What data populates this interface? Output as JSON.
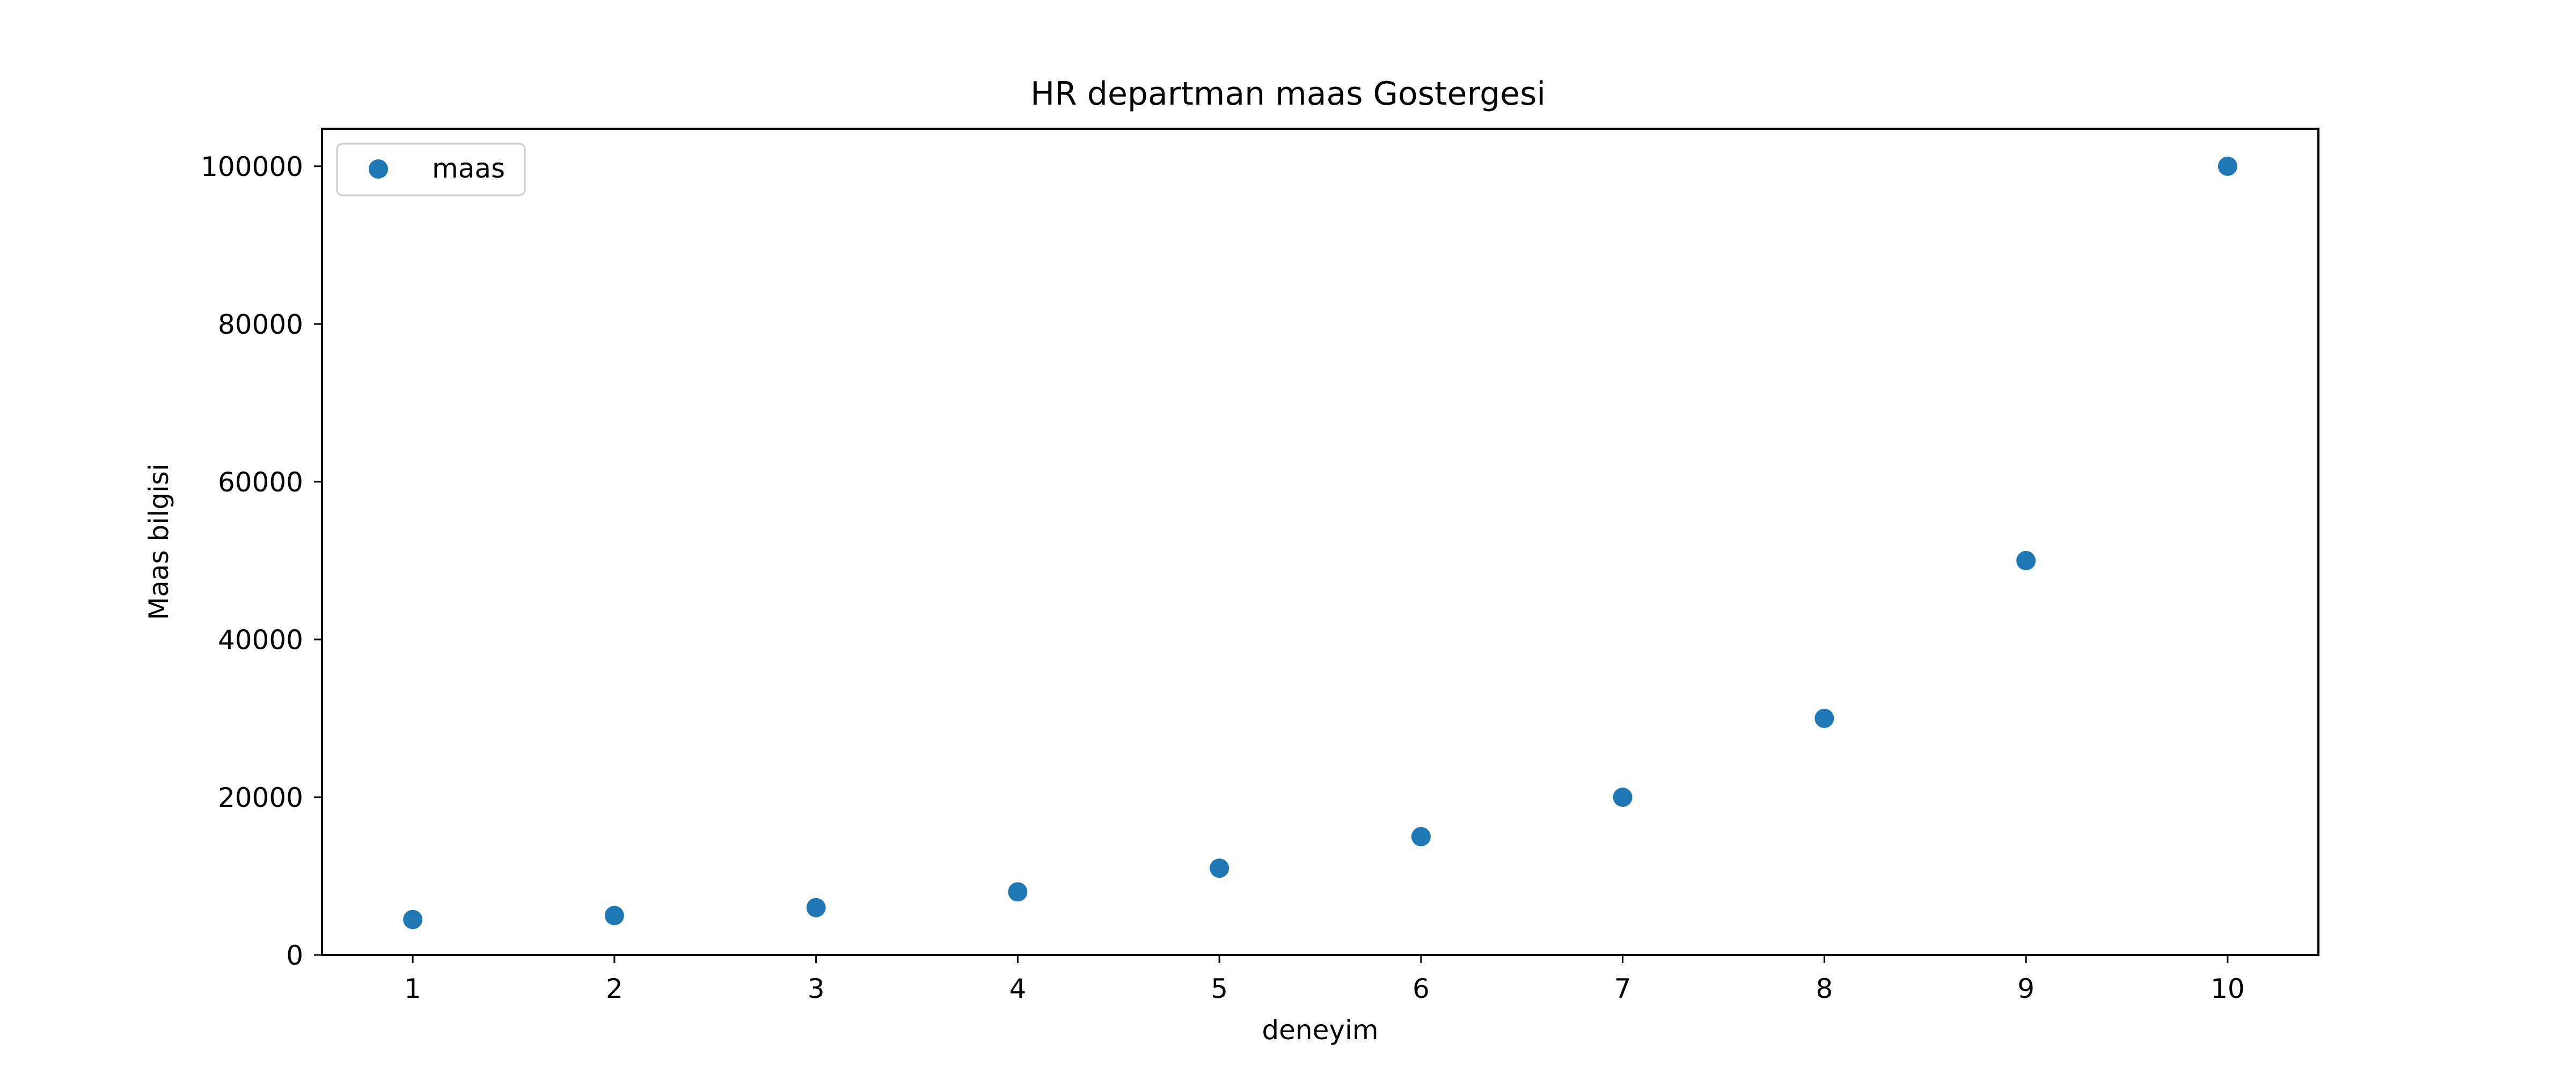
{
  "chart_data": {
    "type": "scatter",
    "title": "HR departman maas Gostergesi",
    "xlabel": "deneyim",
    "ylabel": "Maas bilgisi",
    "x": [
      1,
      2,
      3,
      4,
      5,
      6,
      7,
      8,
      9,
      10
    ],
    "series": [
      {
        "name": "maas",
        "color": "#1f77b4",
        "values": [
          4500,
          5000,
          6000,
          8000,
          11000,
          15000,
          20000,
          30000,
          50000,
          100000
        ]
      }
    ],
    "xlim": [
      0.55,
      10.45
    ],
    "ylim": [
      0,
      104750
    ],
    "xticks": [
      "1",
      "2",
      "3",
      "4",
      "5",
      "6",
      "7",
      "8",
      "9",
      "10"
    ],
    "yticks": [
      "0",
      "20000",
      "40000",
      "60000",
      "80000",
      "100000"
    ],
    "grid": false,
    "legend": "upper-left"
  }
}
